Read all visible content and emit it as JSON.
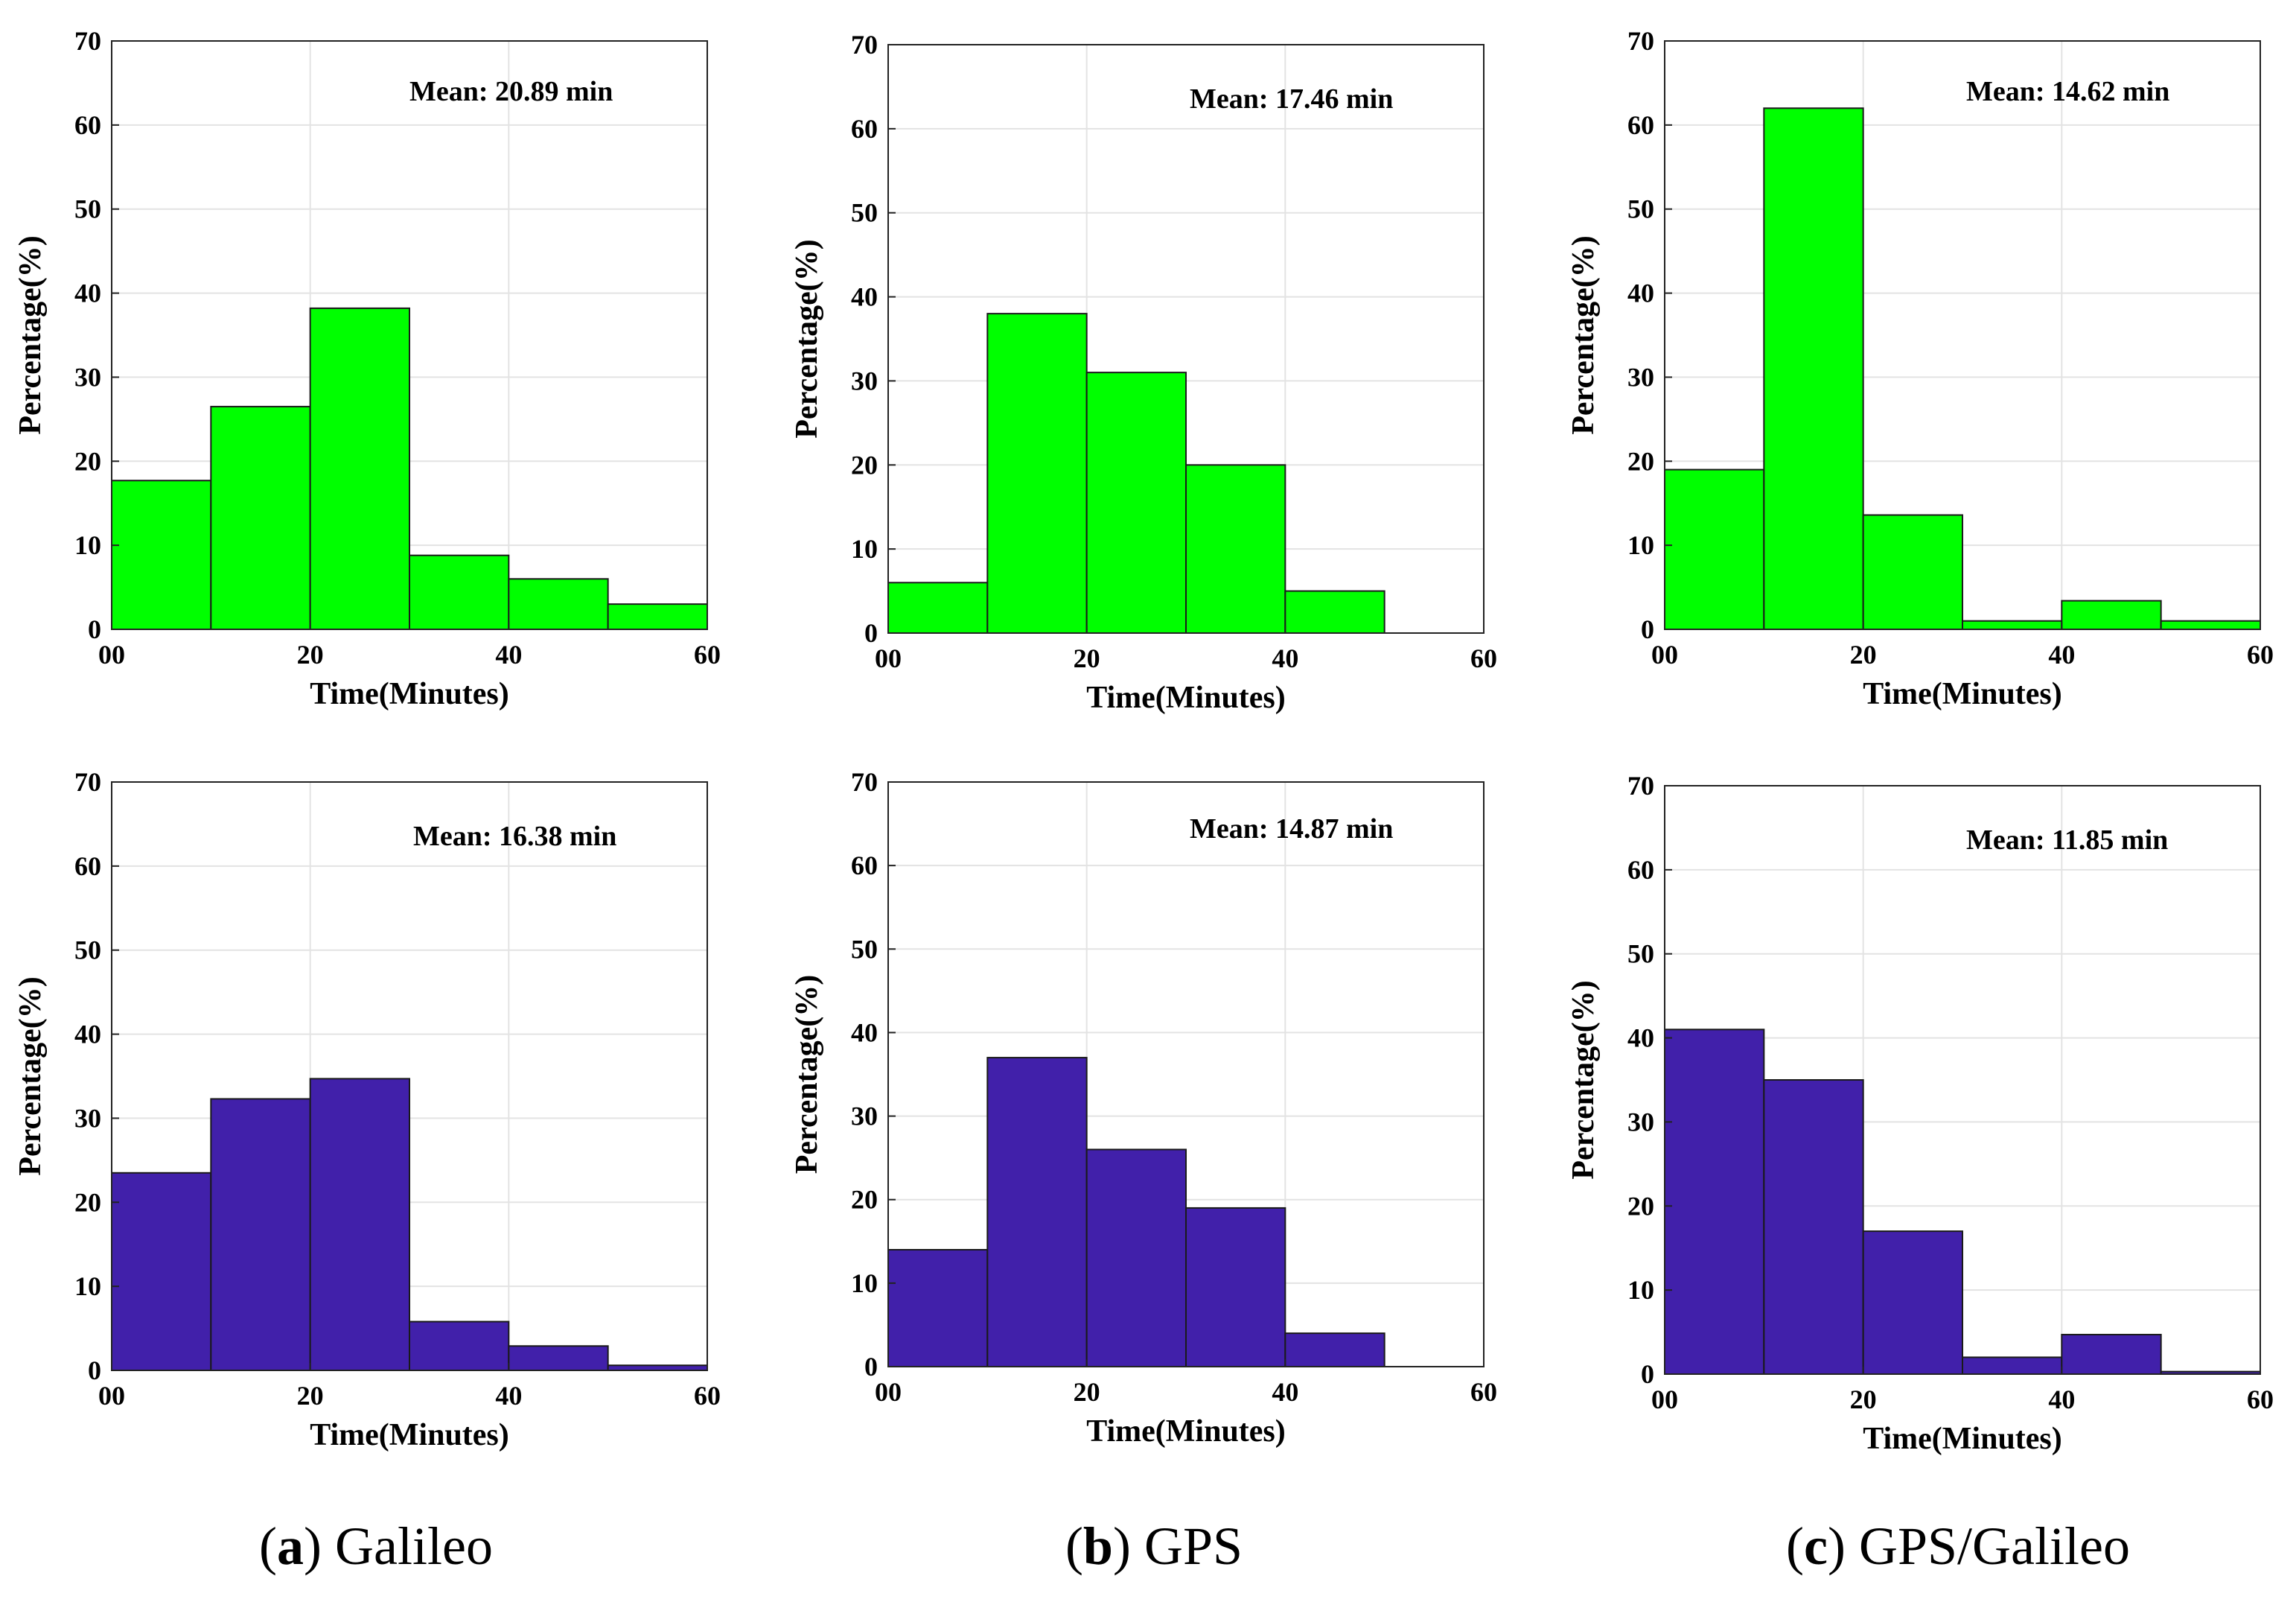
{
  "chart_data": [
    {
      "type": "bar",
      "system": "Galileo",
      "row": "top",
      "color": "#00ff00",
      "bin_edges": [
        0,
        10,
        20,
        30,
        40,
        50,
        60
      ],
      "values": [
        17.7,
        26.5,
        38.2,
        8.8,
        6.0,
        3.0
      ],
      "mean_label": "Mean: 20.89 min",
      "xlabel": "Time(Minutes)",
      "ylabel": "Percentage(%)",
      "xlim": [
        0,
        60
      ],
      "ylim": [
        0,
        70
      ],
      "xticks": [
        "00",
        "20",
        "40",
        "60"
      ],
      "yticks": [
        "0",
        "10",
        "20",
        "30",
        "40",
        "50",
        "60",
        "70"
      ],
      "grid": true
    },
    {
      "type": "bar",
      "system": "GPS",
      "row": "top",
      "color": "#00ff00",
      "bin_edges": [
        0,
        10,
        20,
        30,
        40,
        50,
        60
      ],
      "values": [
        6.0,
        38.0,
        31.0,
        20.0,
        5.0,
        0
      ],
      "mean_label": "Mean: 17.46 min",
      "xlabel": "Time(Minutes)",
      "ylabel": "Percentage(%)",
      "xlim": [
        0,
        60
      ],
      "ylim": [
        0,
        70
      ],
      "xticks": [
        "00",
        "20",
        "40",
        "60"
      ],
      "yticks": [
        "0",
        "10",
        "20",
        "30",
        "40",
        "50",
        "60",
        "70"
      ],
      "grid": true
    },
    {
      "type": "bar",
      "system": "GPS/Galileo",
      "row": "top",
      "color": "#00ff00",
      "bin_edges": [
        0,
        10,
        20,
        30,
        40,
        50,
        60
      ],
      "values": [
        19.0,
        62.0,
        13.6,
        1.0,
        3.4,
        1.0
      ],
      "mean_label": "Mean: 14.62 min",
      "xlabel": "Time(Minutes)",
      "ylabel": "Percentage(%)",
      "xlim": [
        0,
        60
      ],
      "ylim": [
        0,
        70
      ],
      "xticks": [
        "00",
        "20",
        "40",
        "60"
      ],
      "yticks": [
        "0",
        "10",
        "20",
        "30",
        "40",
        "50",
        "60",
        "70"
      ],
      "grid": true
    },
    {
      "type": "bar",
      "system": "Galileo",
      "row": "bottom",
      "color": "#4120aa",
      "bin_edges": [
        0,
        10,
        20,
        30,
        40,
        50,
        60
      ],
      "values": [
        23.5,
        32.3,
        34.7,
        5.8,
        2.9,
        0.6
      ],
      "mean_label": "Mean: 16.38 min",
      "xlabel": "Time(Minutes)",
      "ylabel": "Percentage(%)",
      "xlim": [
        0,
        60
      ],
      "ylim": [
        0,
        70
      ],
      "xticks": [
        "00",
        "20",
        "40",
        "60"
      ],
      "yticks": [
        "0",
        "10",
        "20",
        "30",
        "40",
        "50",
        "60",
        "70"
      ],
      "grid": true
    },
    {
      "type": "bar",
      "system": "GPS",
      "row": "bottom",
      "color": "#4120aa",
      "bin_edges": [
        0,
        10,
        20,
        30,
        40,
        50,
        60
      ],
      "values": [
        14.0,
        37.0,
        26.0,
        19.0,
        4.0,
        0
      ],
      "mean_label": "Mean: 14.87 min",
      "xlabel": "Time(Minutes)",
      "ylabel": "Percentage(%)",
      "xlim": [
        0,
        60
      ],
      "ylim": [
        0,
        70
      ],
      "xticks": [
        "00",
        "20",
        "40",
        "60"
      ],
      "yticks": [
        "0",
        "10",
        "20",
        "30",
        "40",
        "50",
        "60",
        "70"
      ],
      "grid": true
    },
    {
      "type": "bar",
      "system": "GPS/Galileo",
      "row": "bottom",
      "color": "#4120aa",
      "bin_edges": [
        0,
        10,
        20,
        30,
        40,
        50,
        60
      ],
      "values": [
        41.0,
        35.0,
        17.0,
        2.0,
        4.7,
        0.3
      ],
      "mean_label": "Mean: 11.85 min",
      "xlabel": "Time(Minutes)",
      "ylabel": "Percentage(%)",
      "xlim": [
        0,
        60
      ],
      "ylim": [
        0,
        70
      ],
      "xticks": [
        "00",
        "20",
        "40",
        "60"
      ],
      "yticks": [
        "0",
        "10",
        "20",
        "30",
        "40",
        "50",
        "60",
        "70"
      ],
      "grid": true
    }
  ],
  "captions": [
    {
      "open": "(",
      "letter": "a",
      "close": ")",
      "label": " Galileo"
    },
    {
      "open": "(",
      "letter": "b",
      "close": ")",
      "label": " GPS"
    },
    {
      "open": "(",
      "letter": "c",
      "close": ")",
      "label": " GPS/Galileo"
    }
  ]
}
